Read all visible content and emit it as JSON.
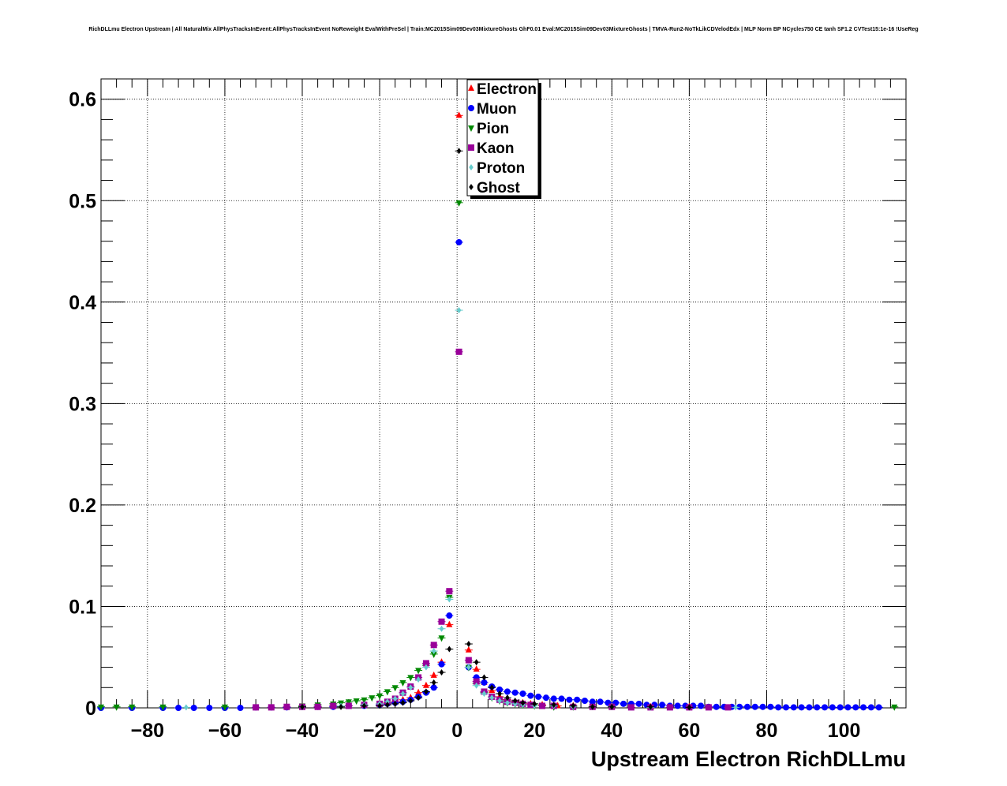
{
  "chart_data": {
    "type": "scatter",
    "title": "RichDLLmu Electron Upstream | All NaturalMix AllPhysTracksInEvent:AllPhysTracksInEvent NoReweight EvalWithPreSel | Train:MC2015Sim09Dev03MixtureGhosts GhF0.01 Eval:MC2015Sim09Dev03MixtureGhosts | TMVA-Run2-NoTkLikCDVelodEdx | MLP Norm BP NCycles750 CE tanh SF1.2 CVTest15:1e-16 !UseReg",
    "xlabel": "Upstream Electron RichDLLmu",
    "ylabel": "",
    "xlim": [
      -92,
      116
    ],
    "ylim": [
      0,
      0.62
    ],
    "grid": true,
    "legend_position": "top-center",
    "x_ticks": [
      -80,
      -60,
      -40,
      -20,
      0,
      20,
      40,
      60,
      80,
      100
    ],
    "x_tick_labels": [
      "−80",
      "−60",
      "−40",
      "−20",
      "0",
      "20",
      "40",
      "60",
      "80",
      "100"
    ],
    "y_ticks": [
      0,
      0.1,
      0.2,
      0.3,
      0.4,
      0.5,
      0.6
    ],
    "y_tick_labels": [
      "0",
      "0.1",
      "0.2",
      "0.3",
      "0.4",
      "0.5",
      "0.6"
    ],
    "series": [
      {
        "name": "Electron",
        "color": "#ff0000",
        "marker": "triangle-up",
        "x": [
          -40,
          -36,
          -32,
          -28,
          -24,
          -20,
          -18,
          -16,
          -14,
          -12,
          -10,
          -8,
          -6,
          -4,
          -2,
          0.5,
          3,
          5,
          7,
          9,
          11,
          13,
          15,
          17,
          19,
          22,
          26,
          30,
          35,
          40,
          50,
          60
        ],
        "y": [
          0.001,
          0.001,
          0.002,
          0.002,
          0.003,
          0.004,
          0.005,
          0.006,
          0.008,
          0.01,
          0.015,
          0.022,
          0.032,
          0.045,
          0.082,
          0.584,
          0.057,
          0.038,
          0.025,
          0.017,
          0.011,
          0.008,
          0.006,
          0.005,
          0.004,
          0.003,
          0.002,
          0.002,
          0.001,
          0.001,
          0.001,
          0.001
        ]
      },
      {
        "name": "Muon",
        "color": "#0000ff",
        "marker": "circle",
        "x": [
          -92,
          -84,
          -76,
          -72,
          -68,
          -64,
          -60,
          -56,
          -52,
          -48,
          -44,
          -40,
          -36,
          -32,
          -28,
          -24,
          -20,
          -18,
          -16,
          -14,
          -12,
          -10,
          -8,
          -6,
          -4,
          -2,
          0.5,
          3,
          5,
          7,
          9,
          11,
          13,
          15,
          17,
          19,
          21,
          23,
          25,
          27,
          29,
          31,
          33,
          35,
          37,
          39,
          41,
          43,
          45,
          47,
          49,
          51,
          53,
          55,
          57,
          59,
          61,
          63,
          65,
          67,
          69,
          71,
          73,
          75,
          77,
          79,
          81,
          83,
          85,
          87,
          89,
          91,
          93,
          95,
          97,
          99,
          101,
          103,
          105,
          107,
          109
        ],
        "y": [
          0.0,
          0.0,
          0.0,
          0.0,
          0.0,
          0.0,
          0.0,
          0.0,
          0.0005,
          0.0005,
          0.0005,
          0.001,
          0.001,
          0.001,
          0.002,
          0.002,
          0.003,
          0.004,
          0.005,
          0.006,
          0.008,
          0.011,
          0.015,
          0.02,
          0.043,
          0.091,
          0.459,
          0.04,
          0.03,
          0.025,
          0.021,
          0.018,
          0.016,
          0.015,
          0.014,
          0.012,
          0.011,
          0.01,
          0.009,
          0.009,
          0.008,
          0.008,
          0.007,
          0.006,
          0.006,
          0.005,
          0.005,
          0.004,
          0.004,
          0.004,
          0.003,
          0.003,
          0.003,
          0.002,
          0.002,
          0.002,
          0.002,
          0.002,
          0.001,
          0.001,
          0.001,
          0.001,
          0.001,
          0.001,
          0.001,
          0.001,
          0.001,
          0.0005,
          0.0005,
          0.0005,
          0.0005,
          0.0005,
          0.0005,
          0.0005,
          0.0005,
          0.0005,
          0.0005,
          0.0005,
          0.0005,
          0.0005,
          0.0005
        ]
      },
      {
        "name": "Pion",
        "color": "#008800",
        "marker": "triangle-down",
        "x": [
          -92,
          -88,
          -84,
          -76,
          -60,
          -40,
          -36,
          -32,
          -30,
          -28,
          -26,
          -24,
          -22,
          -20,
          -18,
          -16,
          -14,
          -12,
          -10,
          -8,
          -6,
          -4,
          -2,
          0.5,
          3,
          5,
          7,
          9,
          11,
          13,
          15,
          17,
          20,
          25,
          30,
          113
        ],
        "y": [
          0.001,
          0.001,
          0.001,
          0.001,
          0.001,
          0.002,
          0.003,
          0.004,
          0.005,
          0.006,
          0.007,
          0.008,
          0.01,
          0.012,
          0.016,
          0.02,
          0.025,
          0.03,
          0.037,
          0.042,
          0.053,
          0.069,
          0.109,
          0.498,
          0.04,
          0.024,
          0.015,
          0.01,
          0.007,
          0.005,
          0.004,
          0.003,
          0.002,
          0.001,
          0.001,
          0.001
        ]
      },
      {
        "name": "Kaon",
        "color": "#990099",
        "marker": "square",
        "x": [
          -52,
          -48,
          -44,
          -40,
          -36,
          -32,
          -28,
          -24,
          -20,
          -18,
          -16,
          -14,
          -12,
          -10,
          -8,
          -6,
          -4,
          -2,
          0.5,
          3,
          5,
          7,
          9,
          11,
          13,
          15,
          17,
          19,
          22,
          25,
          30,
          35,
          40,
          45,
          50,
          55,
          60,
          65,
          70
        ],
        "y": [
          0.0005,
          0.0005,
          0.001,
          0.001,
          0.001,
          0.002,
          0.002,
          0.003,
          0.004,
          0.006,
          0.009,
          0.015,
          0.021,
          0.03,
          0.044,
          0.062,
          0.085,
          0.115,
          0.351,
          0.047,
          0.026,
          0.016,
          0.011,
          0.008,
          0.006,
          0.005,
          0.004,
          0.003,
          0.002,
          0.002,
          0.001,
          0.001,
          0.001,
          0.0005,
          0.0005,
          0.0005,
          0.0005,
          0.0005,
          0.0005
        ]
      },
      {
        "name": "Proton",
        "color": "#66cccc",
        "marker": "diamond",
        "x": [
          -70,
          -40,
          -30,
          -24,
          -20,
          -18,
          -16,
          -14,
          -12,
          -10,
          -8,
          -6,
          -4,
          -2,
          0.5,
          3,
          5,
          7,
          9,
          11,
          13,
          15,
          17,
          20,
          25,
          30,
          35,
          40,
          50,
          72
        ],
        "y": [
          0.0005,
          0.001,
          0.002,
          0.003,
          0.004,
          0.006,
          0.009,
          0.014,
          0.02,
          0.028,
          0.04,
          0.056,
          0.078,
          0.107,
          0.392,
          0.04,
          0.022,
          0.014,
          0.01,
          0.007,
          0.005,
          0.004,
          0.003,
          0.002,
          0.002,
          0.001,
          0.001,
          0.001,
          0.0005,
          0.0005
        ]
      },
      {
        "name": "Ghost",
        "color": "#000000",
        "marker": "diamond",
        "x": [
          -40,
          -30,
          -24,
          -20,
          -18,
          -16,
          -14,
          -12,
          -10,
          -8,
          -6,
          -4,
          -2,
          0.5,
          3,
          5,
          7,
          9,
          11,
          13,
          15,
          17,
          20,
          25,
          30,
          35,
          40,
          50,
          60
        ],
        "y": [
          0.001,
          0.001,
          0.002,
          0.002,
          0.003,
          0.004,
          0.005,
          0.007,
          0.01,
          0.016,
          0.025,
          0.035,
          0.058,
          0.549,
          0.063,
          0.045,
          0.03,
          0.02,
          0.014,
          0.01,
          0.007,
          0.005,
          0.004,
          0.003,
          0.002,
          0.001,
          0.001,
          0.001,
          0.0005
        ]
      }
    ]
  }
}
